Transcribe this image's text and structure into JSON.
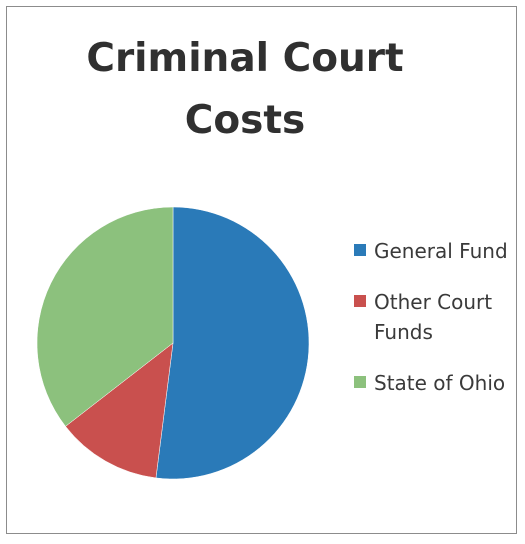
{
  "chart_data": {
    "type": "pie",
    "title": "Criminal Court Costs",
    "categories": [
      "General Fund",
      "Other Court Funds",
      "State of Ohio"
    ],
    "values": [
      52.0,
      12.5,
      35.5
    ],
    "colors": [
      "#2a7ab8",
      "#c9504e",
      "#8cc17d"
    ],
    "legend_position": "right"
  }
}
